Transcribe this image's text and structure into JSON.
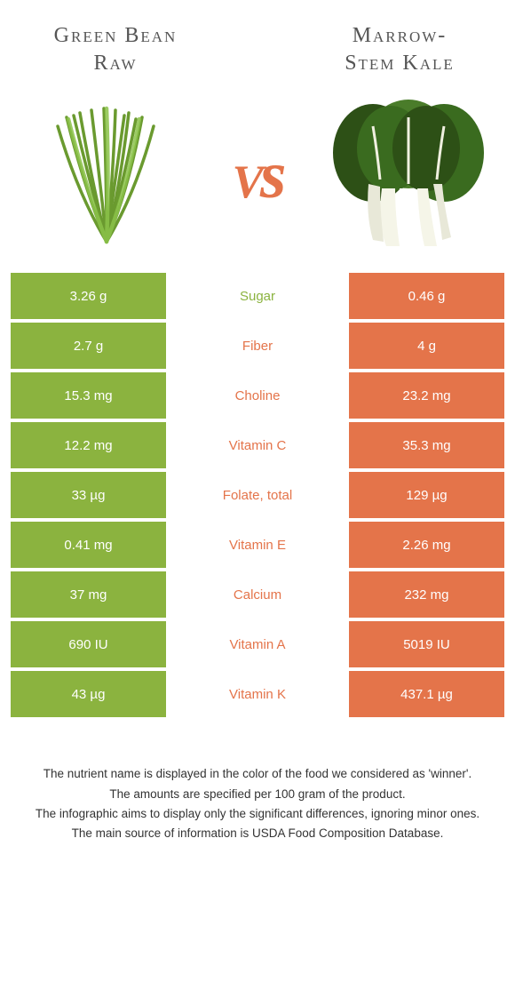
{
  "colors": {
    "green": "#8bb33f",
    "orange": "#e4744a",
    "bg": "#ffffff"
  },
  "left": {
    "title_line1": "Green Bean",
    "title_line2": "Raw"
  },
  "right": {
    "title_line1": "Marrow-",
    "title_line2": "Stem Kale"
  },
  "vs": "vs",
  "rows": [
    {
      "left": "3.26 g",
      "label": "Sugar",
      "right": "0.46 g",
      "winner": "green"
    },
    {
      "left": "2.7 g",
      "label": "Fiber",
      "right": "4 g",
      "winner": "orange"
    },
    {
      "left": "15.3 mg",
      "label": "Choline",
      "right": "23.2 mg",
      "winner": "orange"
    },
    {
      "left": "12.2 mg",
      "label": "Vitamin C",
      "right": "35.3 mg",
      "winner": "orange"
    },
    {
      "left": "33 µg",
      "label": "Folate, total",
      "right": "129 µg",
      "winner": "orange"
    },
    {
      "left": "0.41 mg",
      "label": "Vitamin E",
      "right": "2.26 mg",
      "winner": "orange"
    },
    {
      "left": "37 mg",
      "label": "Calcium",
      "right": "232 mg",
      "winner": "orange"
    },
    {
      "left": "690 IU",
      "label": "Vitamin A",
      "right": "5019 IU",
      "winner": "orange"
    },
    {
      "left": "43 µg",
      "label": "Vitamin K",
      "right": "437.1 µg",
      "winner": "orange"
    }
  ],
  "footer": [
    "The nutrient name is displayed in the color of the food we considered as 'winner'.",
    "The amounts are specified per 100 gram of the product.",
    "The infographic aims to display only the significant differences, ignoring minor ones.",
    "The main source of information is USDA Food Composition Database."
  ]
}
